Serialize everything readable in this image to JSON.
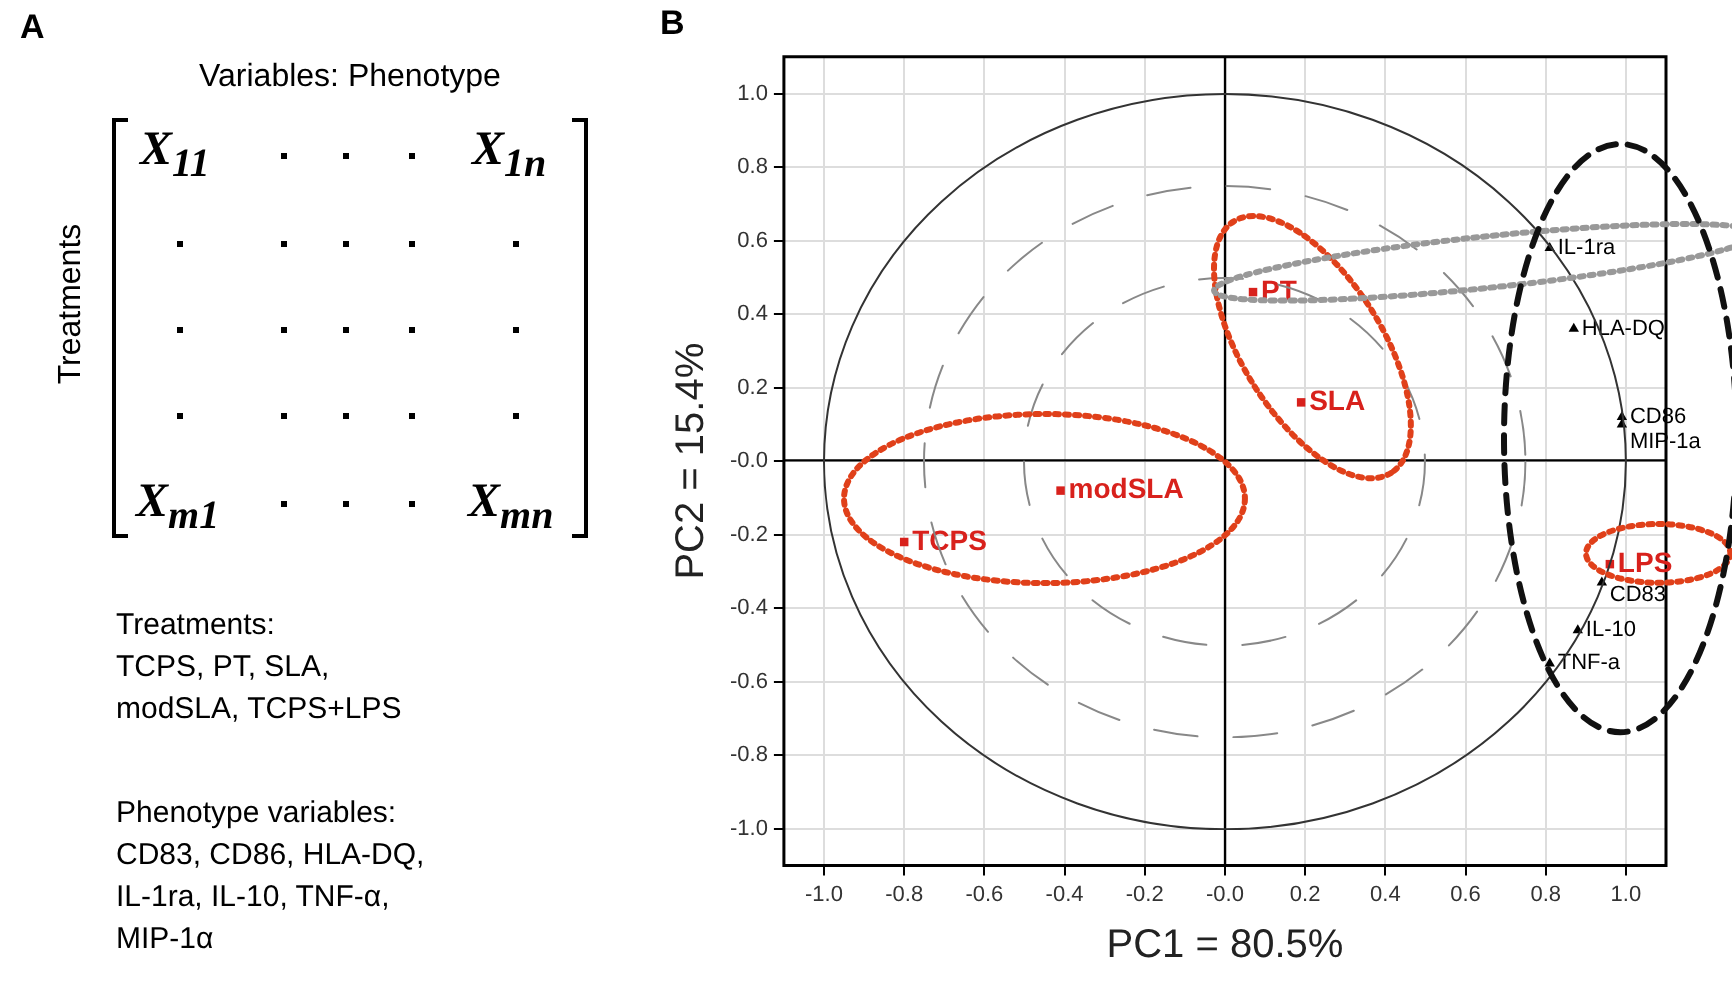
{
  "chart_data": [
    {
      "type": "other",
      "title": "A",
      "subtitle": "Variables: Phenotype",
      "ylabel": "Treatments",
      "annotations": [
        "X$_{11}$",
        "X$_{1n}$",
        "X$_{m1}$",
        "X$_{mn}$",
        "Treatments:\nTCPS, PT, SLA,\nmodSLA, TCPS+LPS",
        "Phenotype variables:\nCD83, CD86, HLA-DQ,\nIL-1ra, IL-10, TNF-α,\nMIP-1α"
      ]
    },
    {
      "type": "scatter",
      "title": "B",
      "xlabel": "PC1 = 80.5%",
      "ylabel": "PC2 = 15.4%",
      "xlim": [
        -1.1,
        1.1
      ],
      "ylim": [
        -1.1,
        1.1
      ],
      "xticks": [
        {
          "value": -1,
          "label": "-1.0"
        },
        -0.8,
        -0.6,
        -0.4,
        -0.2,
        {
          "value": 0,
          "label": "-0.0"
        },
        0.2,
        0.4,
        0.6,
        0.8,
        {
          "value": 1,
          "label": "1.0"
        }
      ],
      "yticks": [
        {
          "value": -1,
          "label": "-1.0"
        },
        -0.8,
        -0.6,
        -0.4,
        -0.2,
        {
          "value": 0,
          "label": "-0.0"
        },
        0.2,
        0.4,
        0.6,
        0.8,
        {
          "value": 1,
          "label": "1.0"
        }
      ],
      "grid": true,
      "series": [
        {
          "type": "scatter",
          "color": "#d8211c",
          "marker": "square",
          "x": [
            0.07,
            0.19,
            -0.41,
            -0.8,
            0.96
          ],
          "values": [
            0.46,
            0.16,
            -0.08,
            -0.22,
            -0.28
          ],
          "value_labels": [
            "PT",
            "SLA",
            "modSLA",
            "TCPS",
            "LPS"
          ]
        },
        {
          "type": "scatter",
          "color": "#000000",
          "marker": "triangle",
          "x": [
            0.81,
            0.87,
            0.99,
            0.99,
            0.94,
            0.88,
            0.81
          ],
          "values": [
            0.58,
            0.36,
            0.12,
            0.1,
            -0.33,
            -0.46,
            -0.55
          ],
          "value_labels": [
            "IL-1ra",
            "HLA-DQ",
            "CD86",
            "MIP-1a",
            "CD83",
            "IL-10",
            "TNF-a"
          ]
        }
      ]
    }
  ]
}
